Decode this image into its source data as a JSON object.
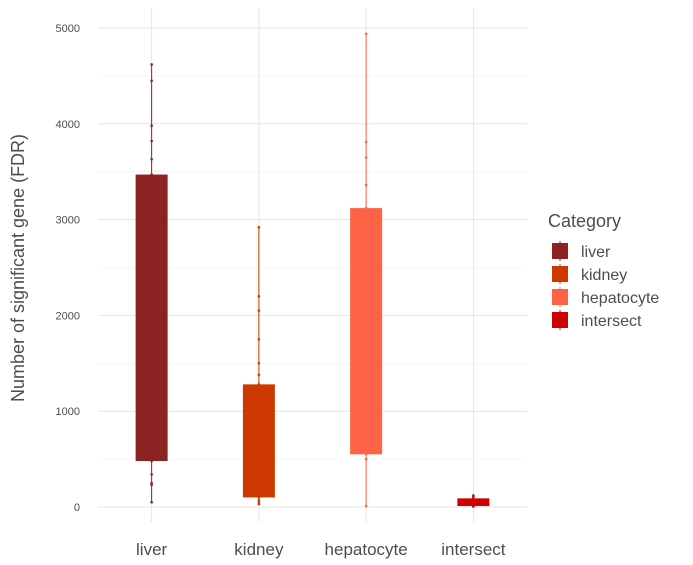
{
  "chart_data": {
    "type": "boxplot",
    "title": "",
    "xlabel": "",
    "ylabel": "Number of significant gene (FDR)",
    "ylim": [
      -50,
      5200
    ],
    "yticks": [
      0,
      1000,
      2000,
      3000,
      4000,
      5000
    ],
    "grid": true,
    "legend_title": "Category",
    "legend_position": "right",
    "categories": [
      "liver",
      "kidney",
      "hepatocyte",
      "intersect"
    ],
    "series": [
      {
        "name": "liver",
        "color": "#8B2323",
        "q1": 480,
        "q3": 3470,
        "min": 50,
        "max": 4620,
        "points": [
          50,
          230,
          250,
          340,
          480,
          3470,
          3630,
          3820,
          3980,
          4450,
          4620
        ]
      },
      {
        "name": "kidney",
        "color": "#CD3700",
        "q1": 100,
        "q3": 1280,
        "min": 30,
        "max": 2920,
        "points": [
          30,
          50,
          70,
          100,
          1280,
          1380,
          1500,
          1750,
          2050,
          2200,
          2920
        ]
      },
      {
        "name": "hepatocyte",
        "color": "#FF6347",
        "q1": 550,
        "q3": 3120,
        "min": 10,
        "max": 4940,
        "points": [
          10,
          500,
          550,
          3120,
          3360,
          3650,
          3810,
          4940
        ]
      },
      {
        "name": "intersect",
        "color": "#CD0000",
        "q1": 10,
        "q3": 90,
        "min": 5,
        "max": 120,
        "points": [
          5,
          10,
          90,
          110,
          120
        ]
      }
    ]
  }
}
